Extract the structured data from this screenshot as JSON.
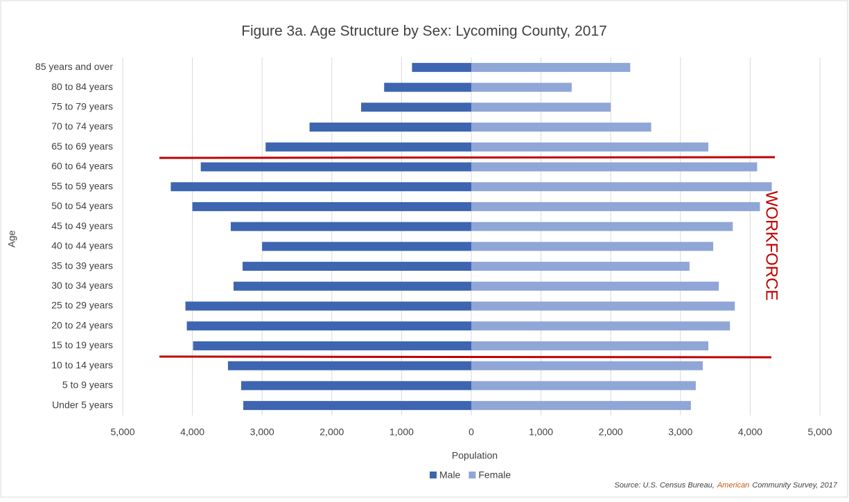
{
  "chart_data": {
    "type": "pyramid",
    "title": "Figure 3a. Age Structure by Sex: Lycoming County, 2017",
    "x_label": "Population",
    "y_label": "Age",
    "categories": [
      "85 years and over",
      "80 to 84 years",
      "75 to 79 years",
      "70 to 74 years",
      "65 to 69 years",
      "60 to 64 years",
      "55 to 59 years",
      "50 to 54 years",
      "45 to 49 years",
      "40 to 44 years",
      "35 to 39 years",
      "30 to 34 years",
      "25 to 29 years",
      "20 to 24 years",
      "15 to 19 years",
      "10 to 14 years",
      "5 to 9 years",
      "Under 5 years"
    ],
    "series": [
      {
        "name": "Male",
        "color": "#3d65b0",
        "values": [
          -850,
          -1250,
          -1580,
          -2320,
          -2950,
          -3880,
          -4310,
          -4000,
          -3450,
          -3000,
          -3280,
          -3410,
          -4100,
          -4080,
          -3990,
          -3490,
          -3300,
          -3270
        ]
      },
      {
        "name": "Female",
        "color": "#8fa6d6",
        "values": [
          2280,
          1440,
          2000,
          2580,
          3400,
          4100,
          4310,
          4140,
          3750,
          3470,
          3130,
          3550,
          3780,
          3710,
          3400,
          3320,
          3220,
          3150
        ]
      }
    ],
    "xlim": [
      -5000,
      5000
    ],
    "xticks": [
      {
        "value": -5000,
        "label": "5,000"
      },
      {
        "value": -4000,
        "label": "4,000"
      },
      {
        "value": -3000,
        "label": "3,000"
      },
      {
        "value": -2000,
        "label": "2,000"
      },
      {
        "value": -1000,
        "label": "1,000"
      },
      0,
      {
        "value": 1000,
        "label": "1,000"
      },
      {
        "value": 2000,
        "label": "2,000"
      },
      {
        "value": 3000,
        "label": "3,000"
      },
      {
        "value": 4000,
        "label": "4,000"
      },
      {
        "value": 5000,
        "label": "5,000"
      }
    ],
    "grid": true,
    "legend": "bottom",
    "annotation": "WORKFORCE",
    "source": [
      "Source: U.S. Census Bureau,",
      "American",
      "Community Survey, 2017"
    ]
  }
}
